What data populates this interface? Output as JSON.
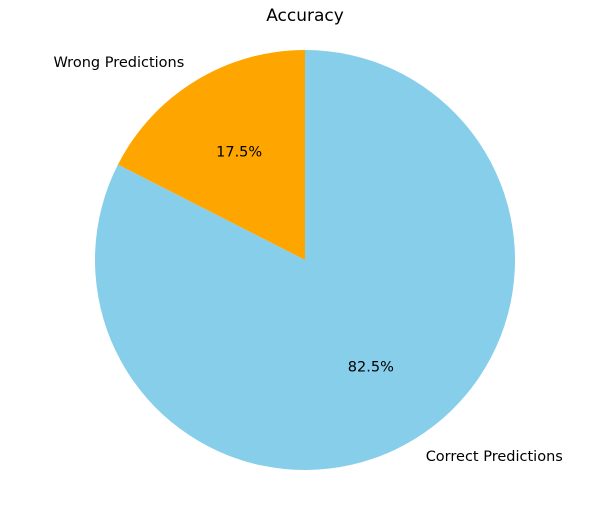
{
  "chart_data": {
    "type": "pie",
    "title": "Accuracy",
    "categories": [
      "Wrong Predictions",
      "Correct Predictions"
    ],
    "values": [
      17.5,
      82.5
    ],
    "value_labels": [
      "17.5%",
      "82.5%"
    ],
    "colors": [
      "#ffa500",
      "#87ceeb"
    ],
    "start_angle": "90° (top), counter-clockwise",
    "legend": "none (labels placed outside slices)"
  }
}
